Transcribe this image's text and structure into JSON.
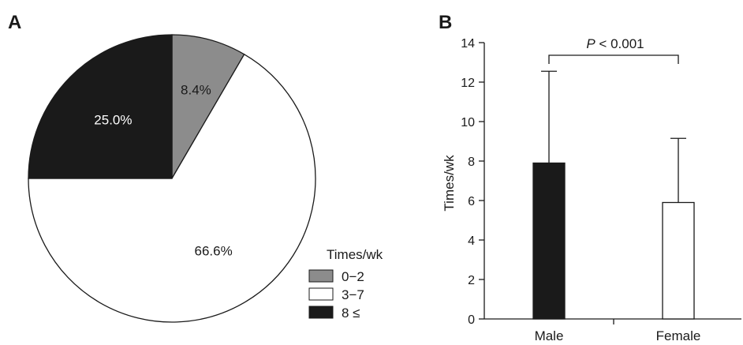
{
  "panels": {
    "a": "A",
    "b": "B"
  },
  "chart_data": [
    {
      "type": "pie",
      "legend_title": "Times/wk",
      "legend_position": "bottom-right",
      "slices": [
        {
          "label": "0−2",
          "value": 8.4,
          "text": "8.4%",
          "color": "#8c8c8c"
        },
        {
          "label": "3−7",
          "value": 66.6,
          "text": "66.6%",
          "color": "#ffffff"
        },
        {
          "label": "8 ≤",
          "value": 25.0,
          "text": "25.0%",
          "color": "#1a1a1a"
        }
      ]
    },
    {
      "type": "bar",
      "categories": [
        "Male",
        "Female"
      ],
      "values": [
        7.9,
        5.9
      ],
      "error_upper": [
        12.55,
        9.15
      ],
      "bar_colors": [
        "#1a1a1a",
        "#ffffff"
      ],
      "ylabel": "Times/wk",
      "xlabel": "",
      "ylim": [
        0,
        14
      ],
      "yticks": [
        0,
        2,
        4,
        6,
        8,
        10,
        12,
        14
      ],
      "annotation": {
        "p_symbol": "P",
        "rest": " < 0.001"
      }
    }
  ]
}
